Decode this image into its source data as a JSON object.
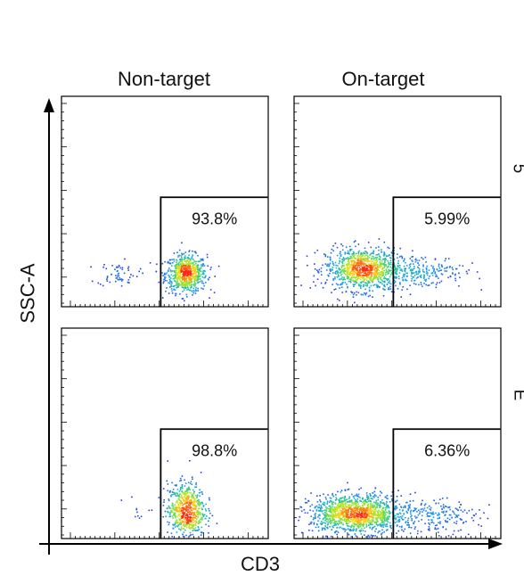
{
  "chart_data": {
    "type": "scatter",
    "subtype": "flow-cytometry-density-plot",
    "xlabel": "CD3",
    "ylabel": "SSC-A",
    "columns": [
      "Non-target",
      "On-target"
    ],
    "row_labels": [
      "5",
      "E"
    ],
    "panels": [
      {
        "id": "non-target-top",
        "column": "Non-target",
        "row": 1,
        "gate_label": "93.8%",
        "gate_percent": 93.8,
        "clusters": [
          {
            "cx": 0.6,
            "cy": 0.16,
            "sx": 0.05,
            "sy": 0.045,
            "n": 700
          },
          {
            "cx": 0.27,
            "cy": 0.16,
            "sx": 0.05,
            "sy": 0.03,
            "n": 60
          }
        ]
      },
      {
        "id": "on-target-top",
        "column": "On-target",
        "row": 1,
        "gate_label": "5.99%",
        "gate_percent": 5.99,
        "clusters": [
          {
            "cx": 0.33,
            "cy": 0.18,
            "sx": 0.09,
            "sy": 0.05,
            "n": 1000
          },
          {
            "cx": 0.62,
            "cy": 0.17,
            "sx": 0.1,
            "sy": 0.04,
            "n": 220
          }
        ]
      },
      {
        "id": "non-target-bottom",
        "column": "Non-target",
        "row": 2,
        "gate_label": "98.8%",
        "gate_percent": 98.8,
        "clusters": [
          {
            "cx": 0.6,
            "cy": 0.14,
            "sx": 0.045,
            "sy": 0.065,
            "n": 650
          },
          {
            "cx": 0.36,
            "cy": 0.13,
            "sx": 0.05,
            "sy": 0.04,
            "n": 12
          }
        ]
      },
      {
        "id": "on-target-bottom",
        "column": "On-target",
        "row": 2,
        "gate_label": "6.36%",
        "gate_percent": 6.36,
        "clusters": [
          {
            "cx": 0.3,
            "cy": 0.12,
            "sx": 0.11,
            "sy": 0.045,
            "n": 1300
          },
          {
            "cx": 0.65,
            "cy": 0.11,
            "sx": 0.12,
            "sy": 0.04,
            "n": 220
          }
        ]
      }
    ]
  }
}
